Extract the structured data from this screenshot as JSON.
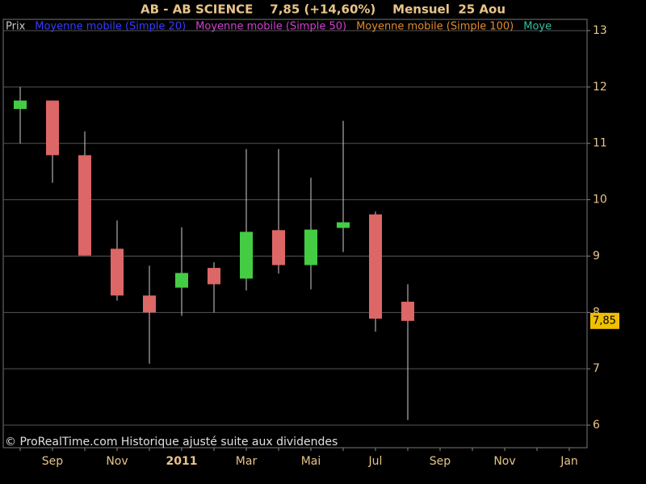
{
  "chart_data": {
    "type": "candlestick",
    "title": "AB - AB SCIENCE    7,85 (+14,60%)    Mensuel  25 Aou",
    "legend": [
      {
        "name": "Prix",
        "color": "#c8c8c8"
      },
      {
        "name": "Moyenne mobile (Simple 20)",
        "color": "#3a3aff"
      },
      {
        "name": "Moyenne mobile (Simple 50)",
        "color": "#d040d0"
      },
      {
        "name": "Moyenne mobile (Simple 100)",
        "color": "#e08a30"
      },
      {
        "name": "Moye",
        "color": "#30c0a0"
      }
    ],
    "categories": [
      null,
      "Sep",
      null,
      "Nov",
      null,
      "2011",
      null,
      "Mar",
      null,
      "Mai",
      null,
      "Jul",
      null,
      "Sep",
      null,
      "Nov",
      null,
      "Jan"
    ],
    "open": [
      11.61,
      11.76,
      10.79,
      9.13,
      8.3,
      8.44,
      8.79,
      8.6,
      9.46,
      8.84,
      9.5,
      9.74,
      8.19,
      null,
      null,
      null,
      null,
      null
    ],
    "high": [
      12.0,
      11.76,
      11.21,
      9.63,
      8.83,
      9.51,
      8.89,
      10.9,
      10.9,
      10.39,
      11.4,
      9.79,
      8.5,
      null,
      null,
      null,
      null,
      null
    ],
    "low": [
      11.0,
      10.3,
      9.01,
      8.21,
      7.09,
      7.94,
      8.0,
      8.39,
      8.69,
      8.41,
      9.07,
      7.66,
      6.09,
      null,
      null,
      null,
      null,
      null
    ],
    "close": [
      11.76,
      10.79,
      9.01,
      8.3,
      8.0,
      8.7,
      8.5,
      9.43,
      8.84,
      9.47,
      9.6,
      7.89,
      7.85,
      null,
      null,
      null,
      null,
      null
    ],
    "up_color": "#44cc44",
    "down_color": "#dd6666",
    "ylim": [
      5.6,
      13.2
    ],
    "yticks": [
      6,
      7,
      8,
      9,
      10,
      11,
      12,
      13
    ],
    "grid": true,
    "last_price": {
      "value": 7.85,
      "label": "7,85"
    },
    "footer": "© ProRealTime.com Historique ajusté suite aux dividendes"
  }
}
